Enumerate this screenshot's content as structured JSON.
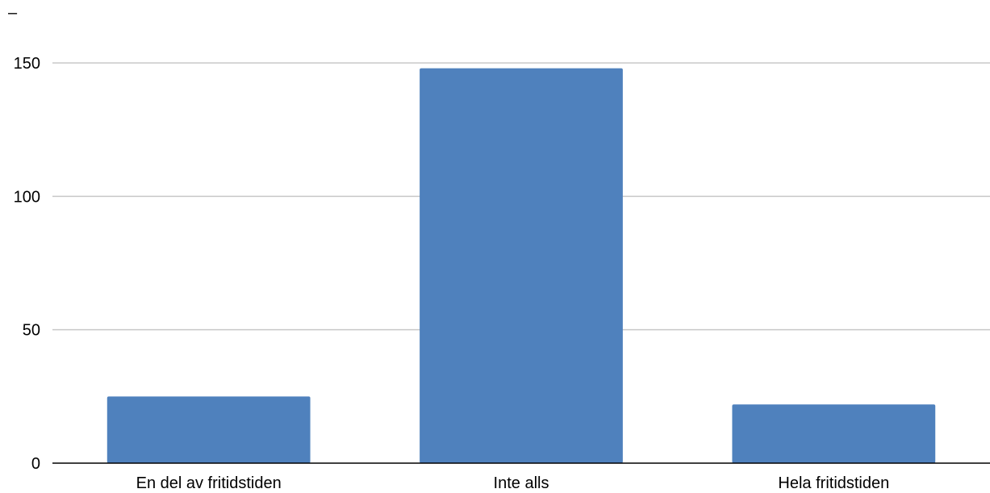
{
  "chart_data": {
    "type": "bar",
    "title": "–",
    "categories": [
      "En del av fritidstiden",
      "Inte alls",
      "Hela fritidstiden"
    ],
    "values": [
      25,
      148,
      22
    ],
    "ylim": [
      0,
      160
    ],
    "yticks": [
      0,
      50,
      100,
      150
    ],
    "grid": true,
    "legend": "none",
    "bar_color": "#4f81bd"
  }
}
